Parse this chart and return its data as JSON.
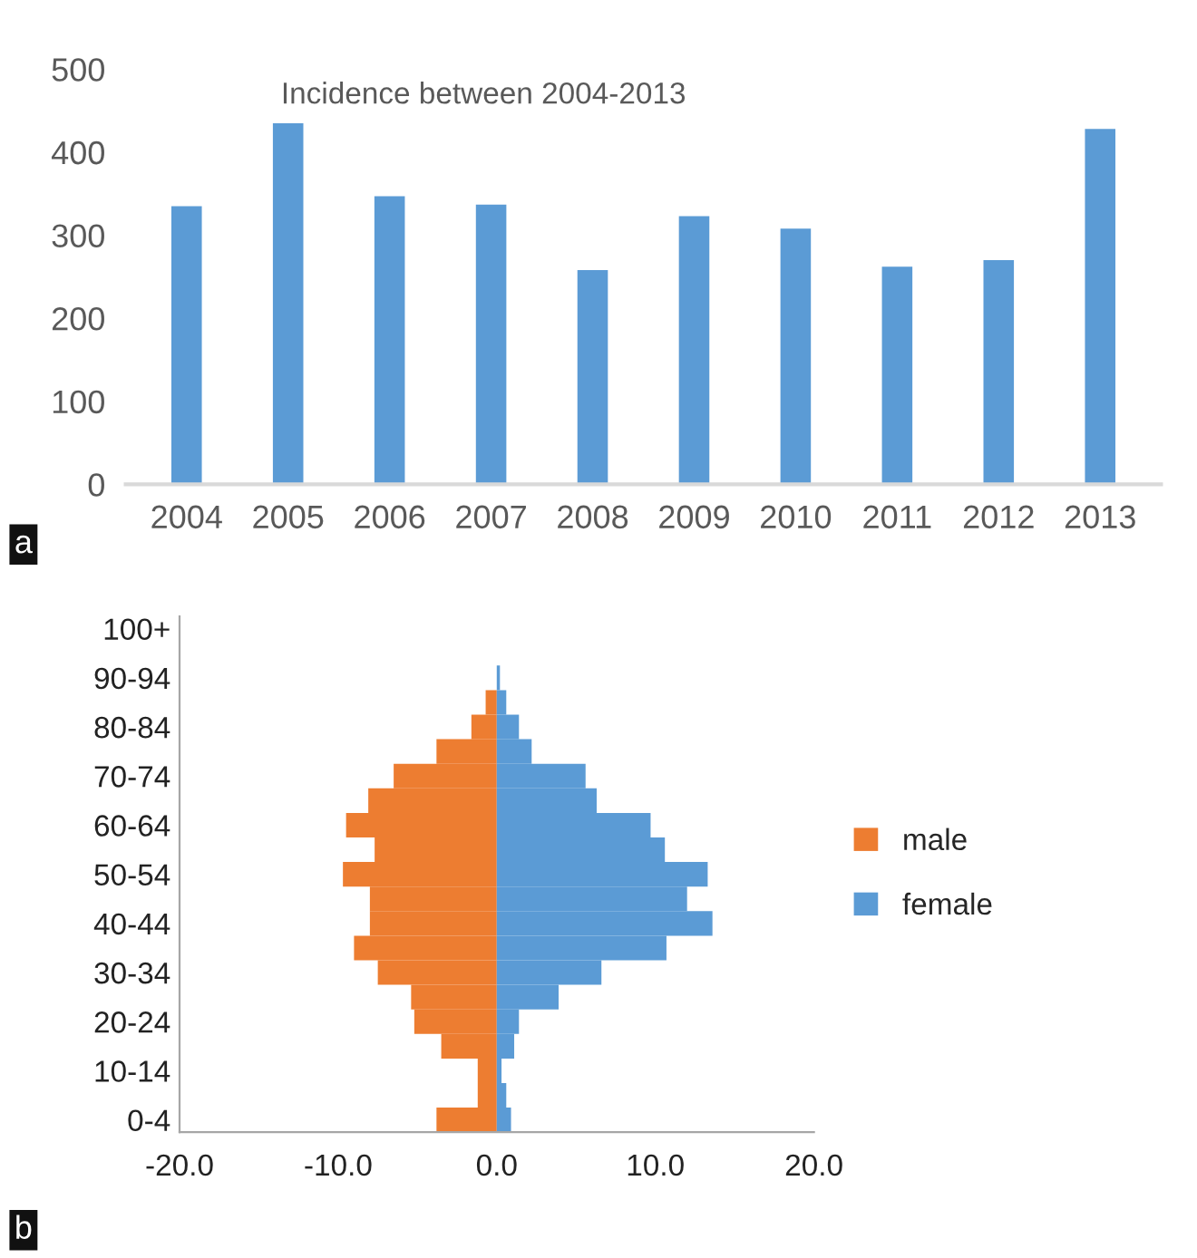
{
  "chart_data": [
    {
      "type": "bar",
      "title": "Incidence between 2004-2013",
      "categories": [
        "2004",
        "2005",
        "2006",
        "2007",
        "2008",
        "2009",
        "2010",
        "2011",
        "2012",
        "2013"
      ],
      "values": [
        335,
        435,
        347,
        337,
        258,
        323,
        308,
        262,
        270,
        428
      ],
      "color": "#5b9bd5",
      "ylim": [
        0,
        500
      ],
      "yticks": [
        0,
        100,
        200,
        300,
        400,
        500
      ],
      "grid": false,
      "annotations": [
        "a"
      ]
    },
    {
      "type": "bar",
      "orientation": "horizontal",
      "stacked": true,
      "categories": [
        "100+",
        null,
        "90-94",
        null,
        "80-84",
        null,
        "70-74",
        null,
        "60-64",
        null,
        "50-54",
        null,
        "40-44",
        null,
        "30-34",
        null,
        "20-24",
        null,
        "10-14",
        null,
        "0-4"
      ],
      "series": [
        {
          "name": "male",
          "color": "#ed7d31",
          "values": [
            null,
            null,
            null,
            -0.7,
            -1.6,
            -3.8,
            -6.5,
            -8.1,
            -9.5,
            -7.7,
            -9.7,
            -8.0,
            -8.0,
            -9.0,
            -7.5,
            -5.4,
            -5.2,
            -3.5,
            -1.2,
            -1.2,
            -3.8
          ]
        },
        {
          "name": "female",
          "color": "#5b9bd5",
          "values": [
            null,
            null,
            0.2,
            0.6,
            1.4,
            2.2,
            5.6,
            6.3,
            9.7,
            10.6,
            13.3,
            12.0,
            13.6,
            10.7,
            6.6,
            3.9,
            1.4,
            1.1,
            0.3,
            0.6,
            0.9
          ]
        }
      ],
      "xlim": [
        -20,
        20
      ],
      "xticks": [
        {
          "value": -20,
          "label": "-20.0"
        },
        {
          "value": -10,
          "label": "-10.0"
        },
        {
          "value": 0,
          "label": "0.0"
        },
        {
          "value": 10,
          "label": "10.0"
        },
        {
          "value": 20,
          "label": "20.0"
        }
      ],
      "grid": false,
      "legend": "right",
      "annotations": [
        "b"
      ]
    }
  ]
}
